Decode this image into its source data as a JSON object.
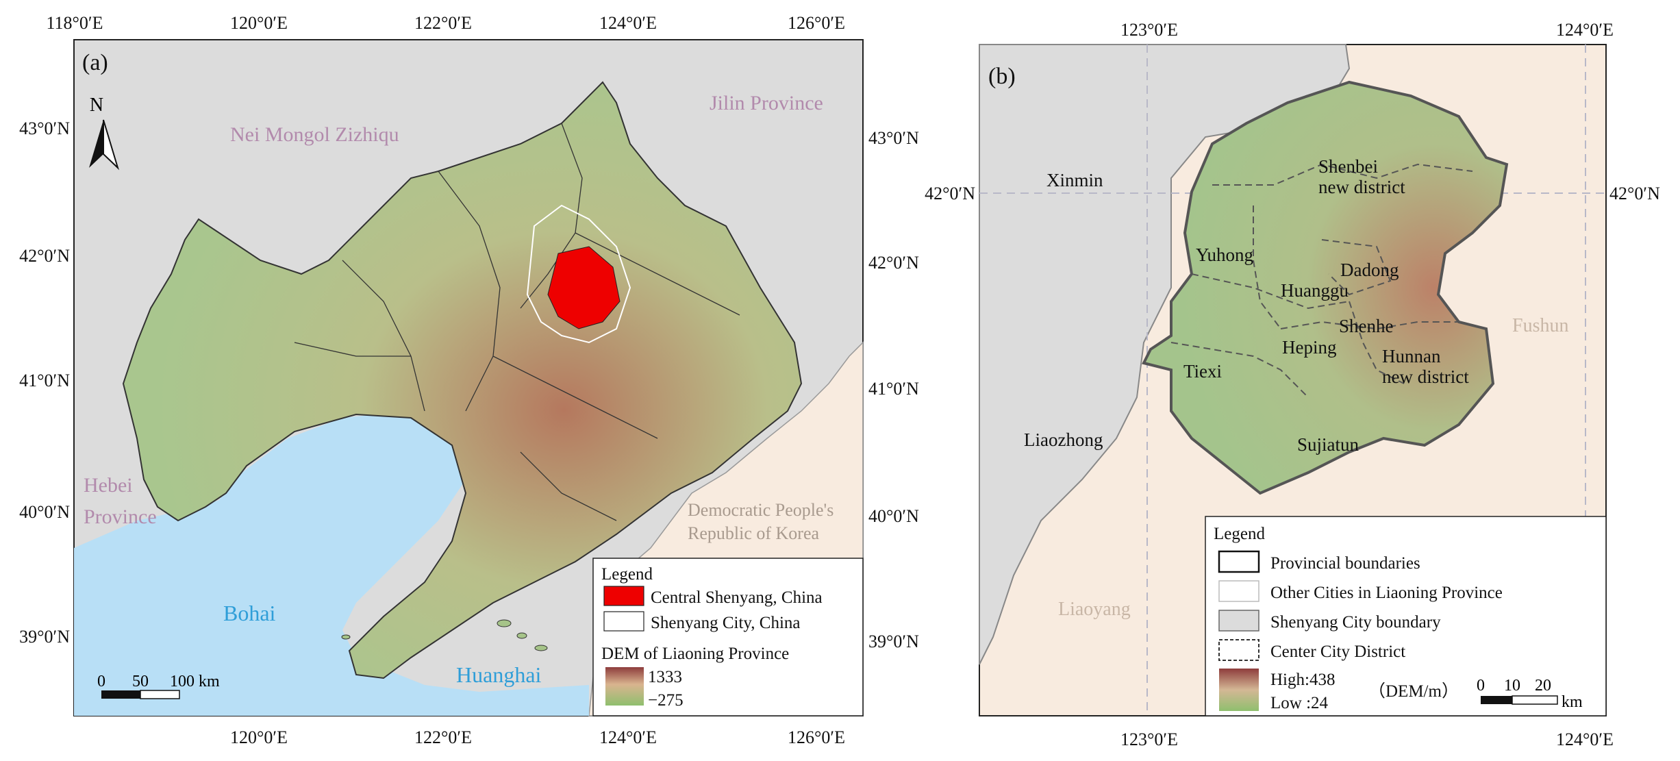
{
  "panel_a": {
    "panel_label": "(a)",
    "north_label": "N",
    "top_ticks": [
      "118°0′E",
      "120°0′E",
      "122°0′E",
      "124°0′E",
      "126°0′E"
    ],
    "bottom_ticks": [
      "120°0′E",
      "122°0′E",
      "124°0′E",
      "126°0′E"
    ],
    "left_ticks": [
      "43°0′N",
      "42°0′N",
      "41°0′N",
      "40°0′N",
      "39°0′N"
    ],
    "right_ticks": [
      "43°0′N",
      "42°0′N",
      "41°0′N",
      "40°0′N",
      "39°0′N"
    ],
    "labels": {
      "nei_mongol": "Nei Mongol Zizhiqu",
      "jilin": "Jilin Province",
      "hebei_1": "Hebei",
      "hebei_2": "Province",
      "dprk_1": "Democratic People's",
      "dprk_2": "Republic of Korea",
      "bohai": "Bohai",
      "huanghai": "Huanghai"
    },
    "scale": {
      "ticks": [
        "0",
        "50",
        "100 km"
      ]
    },
    "legend": {
      "title": "Legend",
      "items": [
        "Central Shenyang, China",
        "Shenyang City, China"
      ],
      "dem_title": "DEM of Liaoning Province",
      "dem_high": "1333",
      "dem_low": "−275"
    }
  },
  "panel_b": {
    "panel_label": "(b)",
    "top_ticks": [
      "123°0′E",
      "124°0′E"
    ],
    "bottom_ticks": [
      "123°0′E",
      "124°0′E"
    ],
    "left_ticks": [
      "42°0′N"
    ],
    "right_ticks": [
      "42°0′N"
    ],
    "districts": {
      "shenbei_1": "Shenbei",
      "shenbei_2": "new district",
      "yuhong": "Yuhong",
      "dadong": "Dadong",
      "huanggu": "Huanggu",
      "shenhe": "Shenhe",
      "heping": "Heping",
      "tiexi": "Tiexi",
      "hunnan_1": "Hunnan",
      "hunnan_2": "new district",
      "sujiatun": "Sujiatun"
    },
    "outside": {
      "xinmin": "Xinmin",
      "liaozhong": "Liaozhong",
      "fushun": "Fushun",
      "liaoyang": "Liaoyang"
    },
    "scale": {
      "ticks": [
        "0",
        "10",
        "20"
      ],
      "unit": "km"
    },
    "legend": {
      "title": "Legend",
      "items": [
        "Provincial boundaries",
        "Other Cities in Liaoning Province",
        "Shenyang City boundary",
        "Center City District"
      ],
      "dem_high": "High:438",
      "dem_low": "Low :24",
      "dem_unit": "（DEM/m）"
    }
  },
  "colors": {
    "land_gray": "#dcdcdc",
    "sea_blue": "#b8dff6",
    "peach": "#f8ebdf",
    "dem_green": "#a6c489",
    "dem_red": "#8e3c3c",
    "central_red": "#ee0000"
  }
}
